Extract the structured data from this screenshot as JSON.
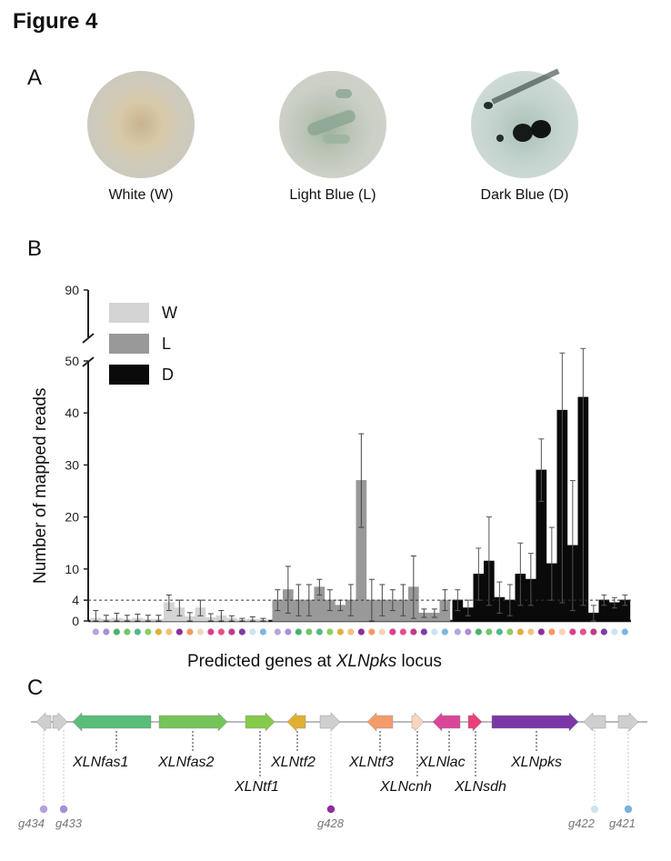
{
  "figure_title": "Figure 4",
  "panel_a": {
    "letter": "A",
    "photos": [
      {
        "caption": "White (W)",
        "icon": "white-culture-photo"
      },
      {
        "caption": "Light Blue (L)",
        "icon": "light-blue-culture-photo"
      },
      {
        "caption": "Dark Blue (D)",
        "icon": "dark-blue-culture-photo"
      }
    ]
  },
  "panel_b": {
    "letter": "B",
    "ylabel": "Number of mapped reads",
    "xlabel_prefix": "Predicted genes at ",
    "xlabel_italic": "XLNpks",
    "xlabel_suffix": " locus",
    "legend": [
      {
        "label": "W",
        "color": "#d4d4d4"
      },
      {
        "label": "L",
        "color": "#999999"
      },
      {
        "label": "D",
        "color": "#0a0a0a"
      }
    ]
  },
  "chart_data": {
    "type": "bar",
    "title": "",
    "xlabel": "Predicted genes at XLNpks locus",
    "ylabel": "Number of mapped reads",
    "yticks_lower": [
      0,
      4,
      10,
      20,
      30,
      40,
      50
    ],
    "yticks_upper": [
      90
    ],
    "ylim_lower": [
      0,
      50
    ],
    "axis_break": [
      50,
      90
    ],
    "threshold_line": 4,
    "dot_colors": [
      "#b7a6d9",
      "#a98fd8",
      "#4ab36a",
      "#76c66b",
      "#52b98c",
      "#8ccf63",
      "#e0b03b",
      "#f1c27a",
      "#8a2f9e",
      "#f39a66",
      "#f7d4b8",
      "#d9418e",
      "#e8508a",
      "#c23a8c",
      "#7b3fa7",
      "#cde3f2",
      "#7fb6de"
    ],
    "series": [
      {
        "name": "W",
        "color": "#d4d4d4",
        "values": [
          0.5,
          0.3,
          0.5,
          0.3,
          0.5,
          0.3,
          0.3,
          3.5,
          2.5,
          0.8,
          2.5,
          0.6,
          1.0,
          0.5,
          0.2,
          0.3,
          0.2
        ],
        "errors": [
          1.5,
          0.8,
          1.0,
          0.8,
          0.8,
          0.8,
          0.8,
          1.5,
          1.5,
          0.8,
          1.5,
          0.8,
          1.0,
          0.5,
          0.3,
          0.5,
          0.3
        ]
      },
      {
        "name": "L",
        "color": "#999999",
        "values": [
          4,
          6,
          4,
          4,
          6.5,
          4,
          3,
          4,
          27,
          4,
          4,
          4,
          4,
          6.5,
          1.5,
          1.5,
          4
        ],
        "errors": [
          2,
          4.5,
          3,
          3,
          1.5,
          2,
          1,
          3,
          9,
          4,
          3,
          2,
          3,
          6,
          0.8,
          0.8,
          2
        ]
      },
      {
        "name": "D",
        "color": "#0a0a0a",
        "values": [
          4,
          2.5,
          9,
          11.5,
          4.5,
          4,
          9,
          8,
          29,
          11,
          40.5,
          14.5,
          43,
          1.5,
          4,
          3.5,
          4
        ],
        "errors": [
          2,
          1.5,
          5,
          8.5,
          3,
          3,
          6,
          5,
          6,
          7,
          37,
          12.5,
          40,
          1.5,
          1,
          1,
          1
        ]
      }
    ]
  },
  "panel_c": {
    "letter": "C",
    "genes": [
      {
        "label": "XLNfas1",
        "color": "#5bbd7a"
      },
      {
        "label": "XLNfas2",
        "color": "#74c45a"
      },
      {
        "label": "XLNtf1",
        "color": "#86ca4a"
      },
      {
        "label": "XLNtf2",
        "color": "#e0b030"
      },
      {
        "label": "XLNtf3",
        "color": "#f49b6c"
      },
      {
        "label": "XLNcnh",
        "color": "#f8d5bd"
      },
      {
        "label": "XLNlac",
        "color": "#d9479a"
      },
      {
        "label": "XLNsdh",
        "color": "#e8407a"
      },
      {
        "label": "XLNpks",
        "color": "#7a37a5"
      }
    ],
    "flanking": [
      {
        "label": "g434",
        "color": "#b3a3da"
      },
      {
        "label": "g433",
        "color": "#a68ed6"
      },
      {
        "label": "g428",
        "color": "#8a2f9e"
      },
      {
        "label": "g422",
        "color": "#cfe3f3"
      },
      {
        "label": "g421",
        "color": "#7ab3dd"
      }
    ],
    "flank_arrow_color": "#cfcfcf"
  }
}
